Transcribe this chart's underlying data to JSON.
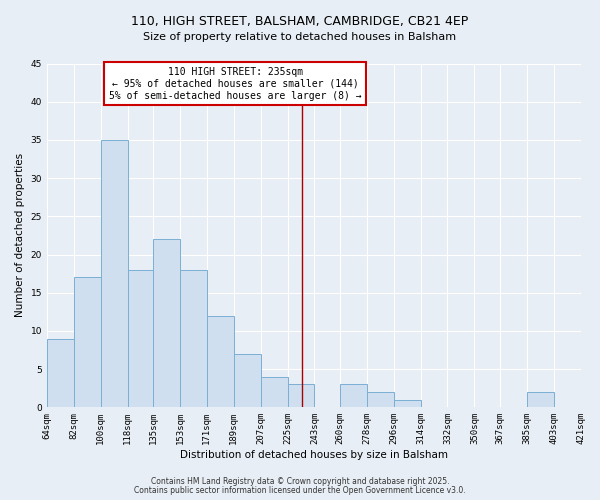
{
  "title": "110, HIGH STREET, BALSHAM, CAMBRIDGE, CB21 4EP",
  "subtitle": "Size of property relative to detached houses in Balsham",
  "xlabel": "Distribution of detached houses by size in Balsham",
  "ylabel": "Number of detached properties",
  "bar_color": "#d0dff0",
  "bar_edge_color": "#7aafd4",
  "background_color": "#e8eef5",
  "grid_color": "#ffffff",
  "bins": [
    64,
    82,
    100,
    118,
    135,
    153,
    171,
    189,
    207,
    225,
    243,
    260,
    278,
    296,
    314,
    332,
    350,
    367,
    385,
    403,
    421
  ],
  "counts": [
    9,
    17,
    35,
    18,
    22,
    18,
    12,
    7,
    4,
    3,
    0,
    3,
    2,
    1,
    0,
    0,
    0,
    0,
    2,
    0
  ],
  "tick_labels": [
    "64sqm",
    "82sqm",
    "100sqm",
    "118sqm",
    "135sqm",
    "153sqm",
    "171sqm",
    "189sqm",
    "207sqm",
    "225sqm",
    "243sqm",
    "260sqm",
    "278sqm",
    "296sqm",
    "314sqm",
    "332sqm",
    "350sqm",
    "367sqm",
    "385sqm",
    "403sqm",
    "421sqm"
  ],
  "ylim": [
    0,
    45
  ],
  "yticks": [
    0,
    5,
    10,
    15,
    20,
    25,
    30,
    35,
    40,
    45
  ],
  "property_size": 235,
  "property_label": "110 HIGH STREET: 235sqm",
  "annotation_line1": "← 95% of detached houses are smaller (144)",
  "annotation_line2": "5% of semi-detached houses are larger (8) →",
  "vline_color": "#aa0000",
  "annotation_box_edge": "#cc0000",
  "footer1": "Contains HM Land Registry data © Crown copyright and database right 2025.",
  "footer2": "Contains public sector information licensed under the Open Government Licence v3.0.",
  "title_fontsize": 9,
  "subtitle_fontsize": 8,
  "label_fontsize": 7.5,
  "tick_fontsize": 6.5,
  "annotation_fontsize": 7,
  "footer_fontsize": 5.5
}
